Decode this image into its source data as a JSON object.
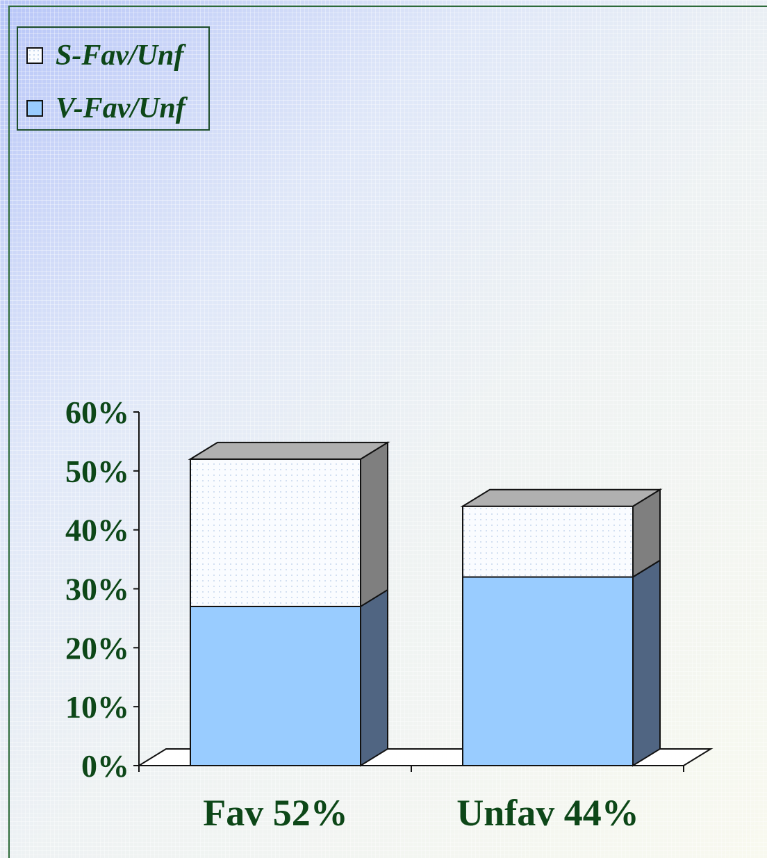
{
  "colors": {
    "v_series": "#99ccff",
    "v_series_side": "#506582",
    "s_series": "#fafcff",
    "s_series_dots": "#b6cbe8",
    "s_series_side": "#7f7f7f",
    "s_series_top": "#b0b0b0",
    "text": "#0d4718"
  },
  "chart_data": {
    "type": "bar",
    "stacked": true,
    "three_d": true,
    "categories": [
      "Fav 52%",
      "Unfav 44%"
    ],
    "series": [
      {
        "name": "V-Fav/Unf",
        "values": [
          27,
          32
        ]
      },
      {
        "name": "S-Fav/Unf",
        "values": [
          25,
          12
        ]
      }
    ],
    "ylim": [
      0,
      60
    ],
    "yticks": [
      "0%",
      "10%",
      "20%",
      "30%",
      "40%",
      "50%",
      "60%"
    ],
    "legend": {
      "position": "top-left",
      "entries": [
        "S-Fav/Unf",
        "V-Fav/Unf"
      ]
    }
  }
}
